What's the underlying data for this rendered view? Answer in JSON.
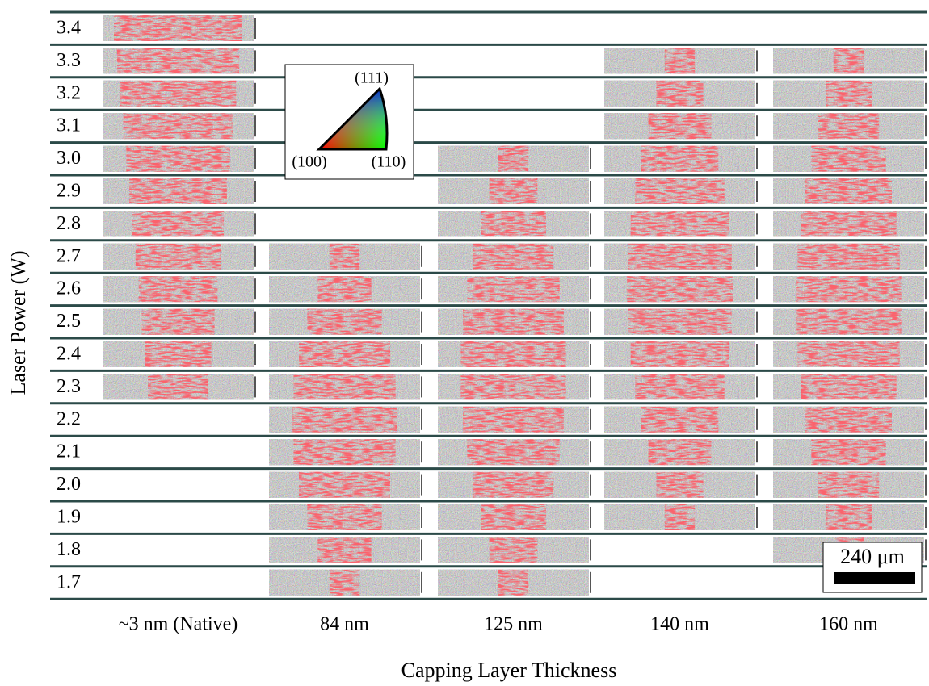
{
  "y_axis_label": "Laser Power (W)",
  "x_axis_label": "Capping Layer Thickness",
  "rows": [
    "3.4",
    "3.3",
    "3.2",
    "3.1",
    "3.0",
    "2.9",
    "2.8",
    "2.7",
    "2.6",
    "2.5",
    "2.4",
    "2.3",
    "2.2",
    "2.1",
    "2.0",
    "1.9",
    "1.8",
    "1.7"
  ],
  "columns": [
    "~3 nm (Native)",
    "84 nm",
    "125 nm",
    "140 nm",
    "160 nm"
  ],
  "legend": {
    "top": "(111)",
    "left": "(100)",
    "right": "(110)"
  },
  "scale_bar": "240 μm"
}
